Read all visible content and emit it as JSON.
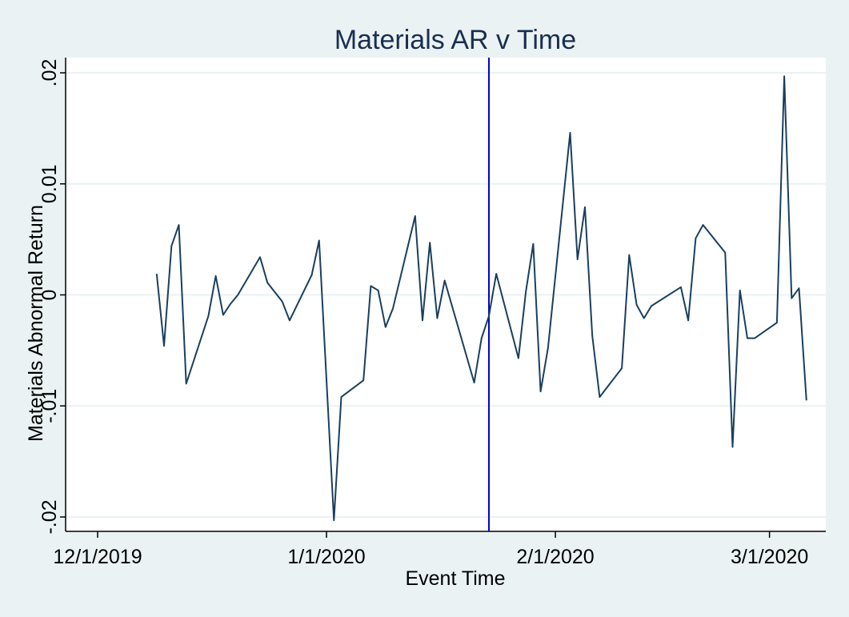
{
  "chart_data": {
    "type": "line",
    "title": "Materials AR v Time",
    "xlabel": "Event Time",
    "ylabel": "Materials Abnormal Return",
    "xlim": [
      "2019-12-01",
      "2020-03-07"
    ],
    "ylim": [
      -0.021,
      0.0205
    ],
    "x_ticks": [
      {
        "date": "2019-12-01",
        "label": "12/1/2019"
      },
      {
        "date": "2020-01-01",
        "label": "1/1/2020"
      },
      {
        "date": "2020-02-01",
        "label": "2/1/2020"
      },
      {
        "date": "2020-03-01",
        "label": "3/1/2020"
      }
    ],
    "y_ticks": [
      {
        "value": -0.02,
        "label": "-.02"
      },
      {
        "value": -0.01,
        "label": "-.01"
      },
      {
        "value": 0,
        "label": "0"
      },
      {
        "value": 0.01,
        "label": "0.01"
      },
      {
        "value": 0.02,
        "label": ".02"
      }
    ],
    "grid": true,
    "vline": {
      "date": "2020-01-23",
      "color": "#0000cc"
    },
    "series": [
      {
        "color": "#1a3f5e",
        "x": [
          "2019-12-09",
          "2019-12-10",
          "2019-12-11",
          "2019-12-12",
          "2019-12-13",
          "2019-12-16",
          "2019-12-17",
          "2019-12-18",
          "2019-12-19",
          "2019-12-20",
          "2019-12-23",
          "2019-12-24",
          "2019-12-26",
          "2019-12-27",
          "2019-12-30",
          "2019-12-31",
          "2020-01-02",
          "2020-01-03",
          "2020-01-06",
          "2020-01-07",
          "2020-01-08",
          "2020-01-09",
          "2020-01-10",
          "2020-01-13",
          "2020-01-14",
          "2020-01-15",
          "2020-01-16",
          "2020-01-17",
          "2020-01-21",
          "2020-01-22",
          "2020-01-23",
          "2020-01-24",
          "2020-01-27",
          "2020-01-28",
          "2020-01-29",
          "2020-01-30",
          "2020-01-31",
          "2020-02-03",
          "2020-02-04",
          "2020-02-05",
          "2020-02-06",
          "2020-02-07",
          "2020-02-10",
          "2020-02-11",
          "2020-02-12",
          "2020-02-13",
          "2020-02-14",
          "2020-02-18",
          "2020-02-19",
          "2020-02-20",
          "2020-02-21",
          "2020-02-24",
          "2020-02-25",
          "2020-02-26",
          "2020-02-27",
          "2020-02-28",
          "2020-03-02",
          "2020-03-03",
          "2020-03-04",
          "2020-03-05",
          "2020-03-06"
        ],
        "y": [
          0.0019,
          -0.0046,
          0.0044,
          0.0063,
          -0.008,
          -0.0019,
          0.0017,
          -0.0018,
          -0.0008,
          0.0,
          0.0034,
          0.0011,
          -0.0006,
          -0.0023,
          0.0018,
          0.0049,
          -0.0203,
          -0.0092,
          -0.0077,
          0.0008,
          0.0004,
          -0.0029,
          -0.0012,
          0.0071,
          -0.0023,
          0.0047,
          -0.0021,
          0.0013,
          -0.0079,
          -0.0039,
          -0.0019,
          0.0019,
          -0.0057,
          0.0003,
          0.0046,
          -0.0087,
          -0.0048,
          0.0146,
          0.0032,
          0.0079,
          -0.0037,
          -0.0092,
          -0.0066,
          0.0036,
          -0.0009,
          -0.0021,
          -0.001,
          0.0007,
          -0.0023,
          0.0051,
          0.0063,
          0.0038,
          -0.0137,
          0.0004,
          -0.0039,
          -0.0039,
          -0.0025,
          0.0197,
          -0.0003,
          0.0006,
          -0.0095
        ]
      }
    ]
  }
}
